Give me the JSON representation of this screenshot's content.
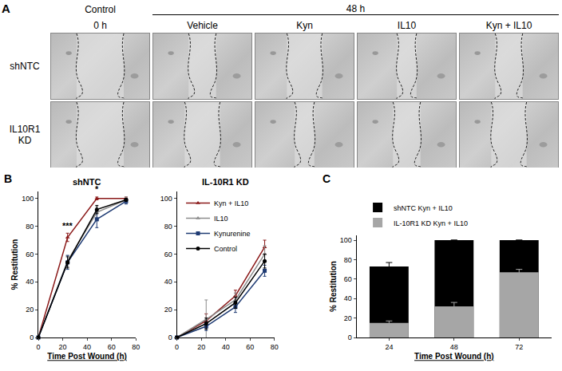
{
  "panel_a": {
    "label": "A",
    "control": {
      "title": "Control",
      "time": "0 h"
    },
    "treated_time": "48 h",
    "columns": [
      "Vehicle",
      "Kyn",
      "IL10",
      "Kyn + IL10"
    ],
    "rows": [
      "shNTC",
      "IL10R1 KD"
    ]
  },
  "chart_data": [
    {
      "type": "line",
      "label": "B",
      "title": "shNTC",
      "x_label": "Time Post Wound (h)",
      "y_label": "% Restitution",
      "x": [
        0,
        24,
        48,
        72
      ],
      "xlim": [
        0,
        80
      ],
      "xticks": [
        0,
        20,
        40,
        60,
        80
      ],
      "ylim": [
        0,
        105
      ],
      "yticks": [
        0,
        20,
        40,
        60,
        80,
        100
      ],
      "series": [
        {
          "name": "Kyn + IL10",
          "color": "#8b1a1a",
          "marker": "triangle-up",
          "line_style": "solid",
          "values": [
            0,
            72,
            100,
            100
          ],
          "errors": [
            0,
            3,
            1,
            1
          ]
        },
        {
          "name": "IL10",
          "color": "#8c8c8c",
          "marker": "triangle-up",
          "line_style": "solid",
          "values": [
            0,
            55,
            90,
            99
          ],
          "errors": [
            0,
            4,
            4,
            2
          ]
        },
        {
          "name": "Kynurenine",
          "color": "#1f3b73",
          "marker": "square",
          "line_style": "solid",
          "values": [
            0,
            54,
            85,
            98
          ],
          "errors": [
            0,
            5,
            6,
            2
          ]
        },
        {
          "name": "Control",
          "color": "#000000",
          "marker": "circle",
          "line_style": "solid",
          "values": [
            0,
            54,
            92,
            99
          ],
          "errors": [
            0,
            4,
            3,
            1
          ]
        }
      ],
      "annotations": [
        {
          "x": 24,
          "y": 76,
          "text": "***"
        },
        {
          "x": 48,
          "y": 102,
          "text": "*"
        }
      ]
    },
    {
      "type": "line",
      "title": "IL-10R1 KD",
      "legend": "upper left",
      "x": [
        0,
        24,
        48,
        72
      ],
      "xlim": [
        0,
        80
      ],
      "xticks": [
        0,
        20,
        40,
        60,
        80
      ],
      "ylim": [
        0,
        105
      ],
      "yticks": [
        0,
        20,
        40,
        60,
        80,
        100
      ],
      "series": [
        {
          "name": "Kyn + IL10",
          "color": "#8b1a1a",
          "marker": "triangle-up",
          "line_style": "solid",
          "values": [
            0,
            12,
            30,
            65
          ],
          "errors": [
            0,
            5,
            4,
            5
          ]
        },
        {
          "name": "IL10",
          "color": "#8c8c8c",
          "marker": "triangle-up",
          "line_style": "solid",
          "values": [
            0,
            13,
            27,
            60
          ],
          "errors": [
            0,
            14,
            5,
            6
          ]
        },
        {
          "name": "Kynurenine",
          "color": "#1f3b73",
          "marker": "square",
          "line_style": "solid",
          "values": [
            0,
            8,
            22,
            48
          ],
          "errors": [
            0,
            3,
            4,
            4
          ]
        },
        {
          "name": "Control",
          "color": "#000000",
          "marker": "circle",
          "line_style": "solid",
          "values": [
            0,
            10,
            25,
            55
          ],
          "errors": [
            0,
            4,
            4,
            5
          ]
        }
      ]
    },
    {
      "type": "bar",
      "label": "C",
      "x_label": "Time Post Wound (h)",
      "y_label": "% Restitution",
      "categories": [
        "24",
        "48",
        "72"
      ],
      "stacked": false,
      "legend": "upper left",
      "ylim": [
        0,
        105
      ],
      "yticks": [
        0,
        20,
        40,
        60,
        80,
        100
      ],
      "series": [
        {
          "name": "shNTC Kyn + IL10",
          "color": "#000000",
          "values": [
            73,
            100,
            100
          ],
          "errors": [
            4,
            0,
            0
          ]
        },
        {
          "name": "IL-10R1 KD Kyn + IL10",
          "color": "#a6a6a6",
          "values": [
            15,
            32,
            67
          ],
          "errors": [
            2,
            4,
            3
          ]
        }
      ]
    }
  ]
}
